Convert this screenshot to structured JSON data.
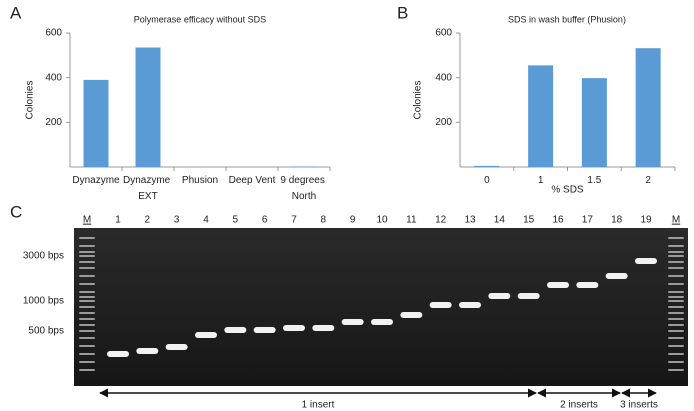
{
  "chart_data": [
    {
      "type": "bar",
      "panel": "A",
      "title": "Polymerase efficacy without SDS",
      "ylabel": "Colonies",
      "categories": [
        "Dynazyme",
        "Dynazyme EXT",
        "Phusion",
        "Deep Vent",
        "9 degrees North"
      ],
      "values": [
        390,
        535,
        0,
        0,
        2
      ],
      "color": "#5b9bd5",
      "ylim": [
        0,
        600
      ],
      "yticks": [
        200,
        400,
        600
      ]
    },
    {
      "type": "bar",
      "panel": "B",
      "title": "SDS in wash buffer (Phusion)",
      "ylabel": "Colonies",
      "xlabel": "% SDS",
      "categories": [
        "0",
        "1",
        "1.5",
        "2"
      ],
      "values": [
        5,
        455,
        398,
        532
      ],
      "color": "#5b9bd5",
      "ylim": [
        0,
        600
      ],
      "yticks": [
        200,
        400,
        600
      ]
    }
  ],
  "gel": {
    "panel": "C",
    "lanes": [
      "M",
      "1",
      "2",
      "3",
      "4",
      "5",
      "6",
      "7",
      "8",
      "9",
      "10",
      "11",
      "12",
      "13",
      "14",
      "15",
      "16",
      "17",
      "18",
      "19",
      "M"
    ],
    "markers": [
      "3000 bps",
      "1000 bps",
      "500 bps"
    ],
    "groups": [
      "1 insert",
      "2 inserts",
      "3 inserts"
    ]
  }
}
